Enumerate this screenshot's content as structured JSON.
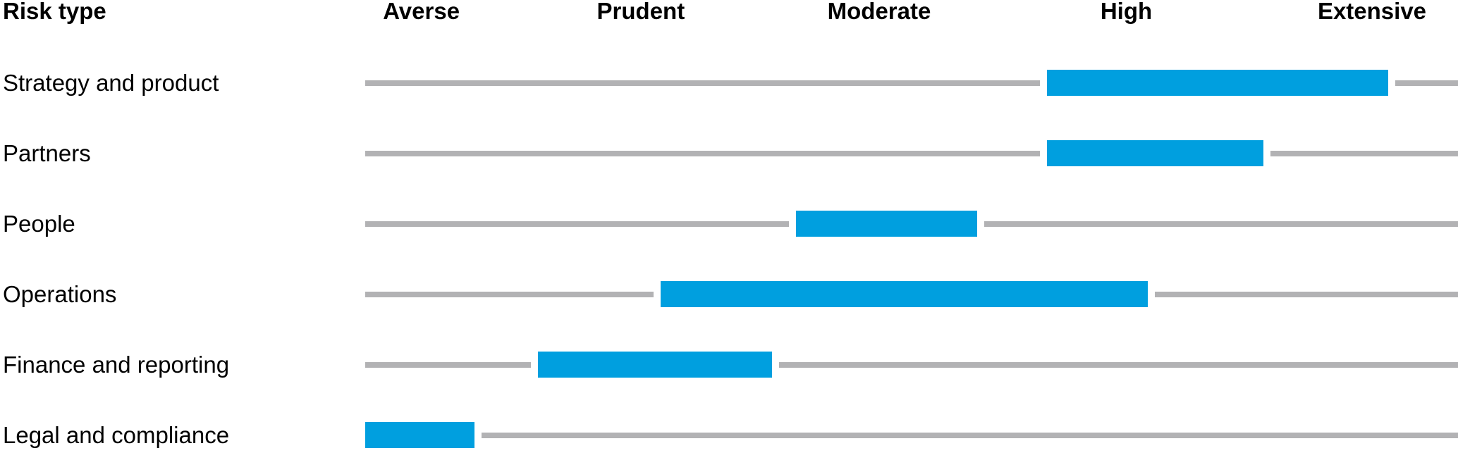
{
  "chart_data": {
    "type": "bar",
    "subtype": "horizontal_range_bars",
    "title": "",
    "corner_label": "Risk type",
    "categories": [
      "Averse",
      "Prudent",
      "Moderate",
      "High",
      "Extensive"
    ],
    "scale": {
      "min": 0,
      "max": 5,
      "note": "each category occupies 1 unit of the horizontal axis"
    },
    "rows": [
      {
        "label": "Strategy and product",
        "from": 3.12,
        "to": 4.68
      },
      {
        "label": "Partners",
        "from": 3.12,
        "to": 4.11
      },
      {
        "label": "People",
        "from": 1.97,
        "to": 2.8
      },
      {
        "label": "Operations",
        "from": 1.35,
        "to": 3.58
      },
      {
        "label": "Finance and reporting",
        "from": 0.79,
        "to": 1.86
      },
      {
        "label": "Legal and compliance",
        "from": 0.0,
        "to": 0.5
      }
    ],
    "colors": {
      "bar": "#009FDF",
      "track": "#B2B2B4",
      "text": "#000000",
      "background": "#FFFFFF"
    },
    "legend": "none",
    "grid": false
  }
}
